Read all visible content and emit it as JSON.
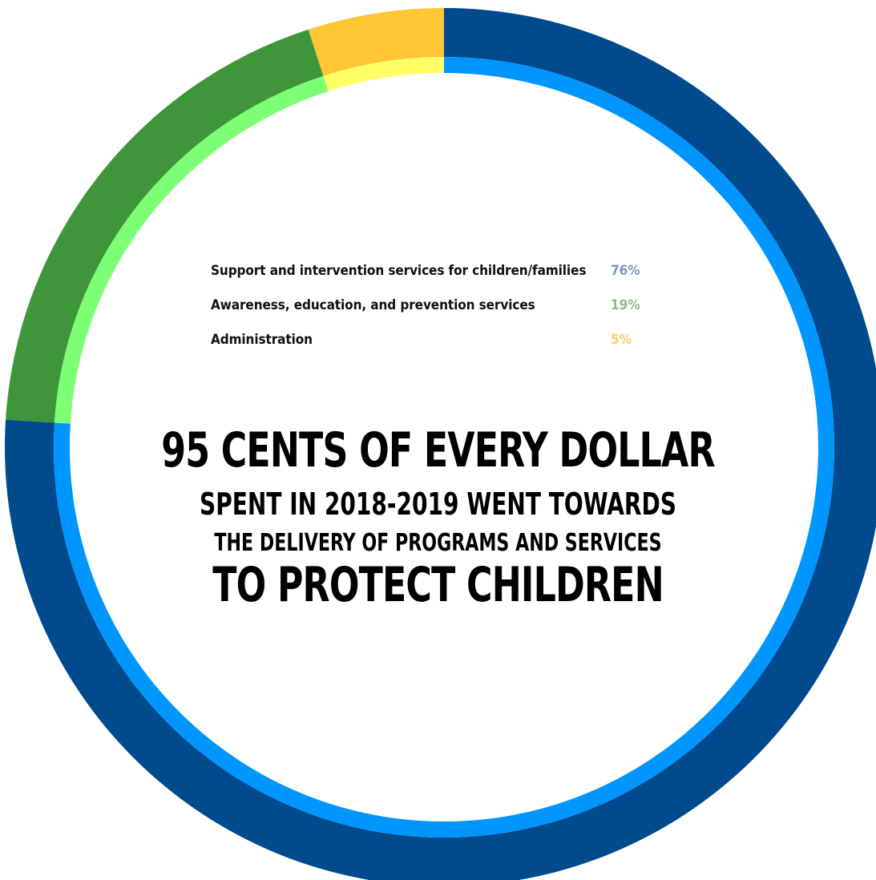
{
  "chart_data": {
    "type": "pie",
    "variant": "donut",
    "slices": [
      {
        "label": "Support and intervention services for children/families",
        "value": 76,
        "display": "76%",
        "outer_color": "#004b8d",
        "inner_color": "#0096ff",
        "label_color": "#7f93c3"
      },
      {
        "label": "Awareness, education, and prevention services",
        "value": 19,
        "display": "19%",
        "outer_color": "#3f953a",
        "inner_color": "#7dff75",
        "label_color": "#8dbd84"
      },
      {
        "label": "Administration",
        "value": 5,
        "display": "5%",
        "outer_color": "#ffc533",
        "inner_color": "#ffff66",
        "label_color": "#ffcd60"
      }
    ],
    "start": "top",
    "direction": "clockwise",
    "legend_position": "center"
  },
  "headline": {
    "line1": "95 CENTS OF EVERY DOLLAR",
    "line2": "SPENT IN 2018-2019 WENT TOWARDS",
    "line3": "THE DELIVERY OF PROGRAMS AND SERVICES",
    "line4": "TO PROTECT CHILDREN"
  }
}
